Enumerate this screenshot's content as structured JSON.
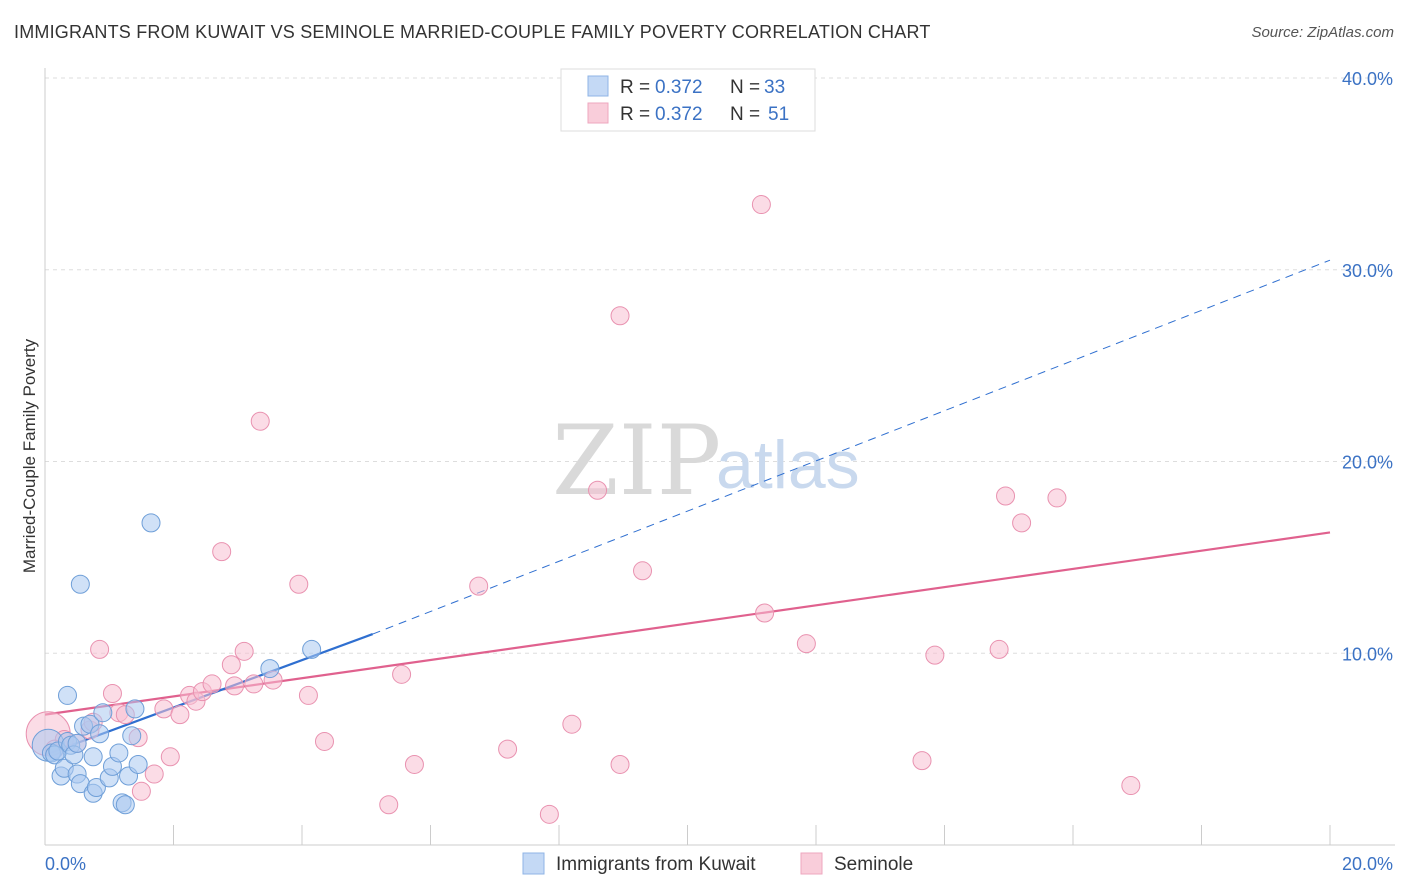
{
  "title": "IMMIGRANTS FROM KUWAIT VS SEMINOLE MARRIED-COUPLE FAMILY POVERTY CORRELATION CHART",
  "source": "Source: ZipAtlas.com",
  "watermark": {
    "zip": "ZIP",
    "atlas": "atlas"
  },
  "legend": {
    "r_label": "R =",
    "n_label": "N =",
    "entries": [
      {
        "r": "0.372",
        "n": "33"
      },
      {
        "r": "0.372",
        "n": "51"
      }
    ]
  },
  "bottom_legend": [
    "Immigrants from Kuwait",
    "Seminole"
  ],
  "chart_data": {
    "type": "scatter",
    "title": "IMMIGRANTS FROM KUWAIT VS SEMINOLE MARRIED-COUPLE FAMILY POVERTY CORRELATION CHART",
    "xlabel": "",
    "ylabel": "Married-Couple Family Poverty",
    "xlim": [
      0,
      20
    ],
    "ylim": [
      0,
      40
    ],
    "x_tick_labels": [
      "0.0%",
      "20.0%"
    ],
    "y_ticks": [
      10,
      20,
      30,
      40
    ],
    "y_tick_labels": [
      "10.0%",
      "20.0%",
      "30.0%",
      "40.0%"
    ],
    "grid": true,
    "colors": {
      "kuwait_fill": "#a9c8f0",
      "kuwait_stroke": "#6f9fd8",
      "kuwait_line": "#2f6fd0",
      "seminole_fill": "#f7c0d2",
      "seminole_stroke": "#e992b0",
      "seminole_line": "#e0618e",
      "grid": "#dddddd",
      "tick_text": "#3b72c4"
    },
    "series": [
      {
        "name": "Immigrants from Kuwait",
        "r": 0.372,
        "n": 33,
        "trend_solid": [
          [
            0,
            4.7
          ],
          [
            5.1,
            11.0
          ]
        ],
        "trend_dashed": [
          [
            5.1,
            11.0
          ],
          [
            20,
            30.5
          ]
        ],
        "points": [
          [
            0.05,
            5.2,
            16
          ],
          [
            0.1,
            4.8,
            9
          ],
          [
            0.15,
            4.7,
            9
          ],
          [
            0.2,
            4.9,
            9
          ],
          [
            0.25,
            3.6,
            9
          ],
          [
            0.3,
            4.0,
            9
          ],
          [
            0.35,
            5.4,
            9
          ],
          [
            0.35,
            7.8,
            9
          ],
          [
            0.4,
            5.2,
            9
          ],
          [
            0.45,
            4.7,
            9
          ],
          [
            0.5,
            5.3,
            9
          ],
          [
            0.5,
            3.7,
            9
          ],
          [
            0.55,
            3.2,
            9
          ],
          [
            0.55,
            13.6,
            9
          ],
          [
            0.6,
            6.2,
            9
          ],
          [
            0.7,
            6.3,
            9
          ],
          [
            0.75,
            2.7,
            9
          ],
          [
            0.75,
            4.6,
            9
          ],
          [
            0.8,
            3.0,
            9
          ],
          [
            0.85,
            5.8,
            9
          ],
          [
            0.9,
            6.9,
            9
          ],
          [
            1.0,
            3.5,
            9
          ],
          [
            1.05,
            4.1,
            9
          ],
          [
            1.15,
            4.8,
            9
          ],
          [
            1.2,
            2.2,
            9
          ],
          [
            1.25,
            2.1,
            9
          ],
          [
            1.3,
            3.6,
            9
          ],
          [
            1.35,
            5.7,
            9
          ],
          [
            1.4,
            7.1,
            9
          ],
          [
            1.45,
            4.2,
            9
          ],
          [
            1.65,
            16.8,
            9
          ],
          [
            3.5,
            9.2,
            9
          ],
          [
            4.15,
            10.2,
            9
          ]
        ]
      },
      {
        "name": "Seminole",
        "r": 0.372,
        "n": 51,
        "trend_solid": [
          [
            0,
            6.8
          ],
          [
            20,
            16.3
          ]
        ],
        "points": [
          [
            0.05,
            5.8,
            22
          ],
          [
            0.3,
            5.5,
            9
          ],
          [
            0.5,
            5.3,
            9
          ],
          [
            0.7,
            6.0,
            9
          ],
          [
            0.75,
            6.4,
            9
          ],
          [
            0.85,
            10.2,
            9
          ],
          [
            1.05,
            7.9,
            9
          ],
          [
            1.15,
            6.9,
            9
          ],
          [
            1.25,
            6.8,
            9
          ],
          [
            1.45,
            5.6,
            9
          ],
          [
            1.5,
            2.8,
            9
          ],
          [
            1.7,
            3.7,
            9
          ],
          [
            1.85,
            7.1,
            9
          ],
          [
            1.95,
            4.6,
            9
          ],
          [
            2.1,
            6.8,
            9
          ],
          [
            2.25,
            7.8,
            9
          ],
          [
            2.35,
            7.5,
            9
          ],
          [
            2.45,
            8.0,
            9
          ],
          [
            2.6,
            8.4,
            9
          ],
          [
            2.75,
            15.3,
            9
          ],
          [
            2.9,
            9.4,
            9
          ],
          [
            2.95,
            8.3,
            9
          ],
          [
            3.1,
            10.1,
            9
          ],
          [
            3.25,
            8.4,
            9
          ],
          [
            3.35,
            22.1,
            9
          ],
          [
            3.55,
            8.6,
            9
          ],
          [
            3.95,
            13.6,
            9
          ],
          [
            4.1,
            7.8,
            9
          ],
          [
            4.35,
            5.4,
            9
          ],
          [
            5.35,
            2.1,
            9
          ],
          [
            5.55,
            8.9,
            9
          ],
          [
            5.75,
            4.2,
            9
          ],
          [
            6.75,
            13.5,
            9
          ],
          [
            7.2,
            5.0,
            9
          ],
          [
            7.85,
            1.6,
            9
          ],
          [
            8.2,
            6.3,
            9
          ],
          [
            8.6,
            18.5,
            9
          ],
          [
            8.95,
            4.2,
            9
          ],
          [
            8.95,
            27.6,
            9
          ],
          [
            9.3,
            14.3,
            9
          ],
          [
            11.15,
            33.4,
            9
          ],
          [
            11.2,
            12.1,
            9
          ],
          [
            11.85,
            10.5,
            9
          ],
          [
            13.65,
            4.4,
            9
          ],
          [
            13.85,
            9.9,
            9
          ],
          [
            14.85,
            10.2,
            9
          ],
          [
            14.95,
            18.2,
            9
          ],
          [
            15.2,
            16.8,
            9
          ],
          [
            15.75,
            18.1,
            9
          ],
          [
            16.9,
            3.1,
            9
          ],
          [
            0.15,
            5.0,
            9
          ]
        ]
      }
    ]
  }
}
